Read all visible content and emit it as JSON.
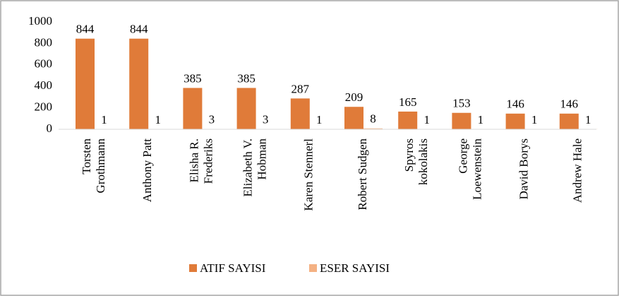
{
  "chart_data": {
    "type": "bar",
    "categories": [
      "Torsten Grothmann",
      "Anthony Patt",
      "Elisha R. Frederiks",
      "Elizabeth V. Hobman",
      "Karen Stennerl",
      "Robert Sudgen",
      "Spyros kokolakis",
      "George Loewenstein",
      "David Borys",
      "Andrew Hale"
    ],
    "series": [
      {
        "name": "ATIF SAYISI",
        "color": "#e07b39",
        "values": [
          844,
          844,
          385,
          385,
          287,
          209,
          165,
          153,
          146,
          146
        ]
      },
      {
        "name": "ESER SAYISI",
        "color": "#f4b183",
        "values": [
          1,
          1,
          3,
          3,
          1,
          8,
          1,
          1,
          1,
          1
        ]
      }
    ],
    "ylim": [
      0,
      1000
    ],
    "yticks": [
      0,
      200,
      400,
      600,
      800,
      1000
    ],
    "grid": false,
    "legend": "bottom"
  }
}
